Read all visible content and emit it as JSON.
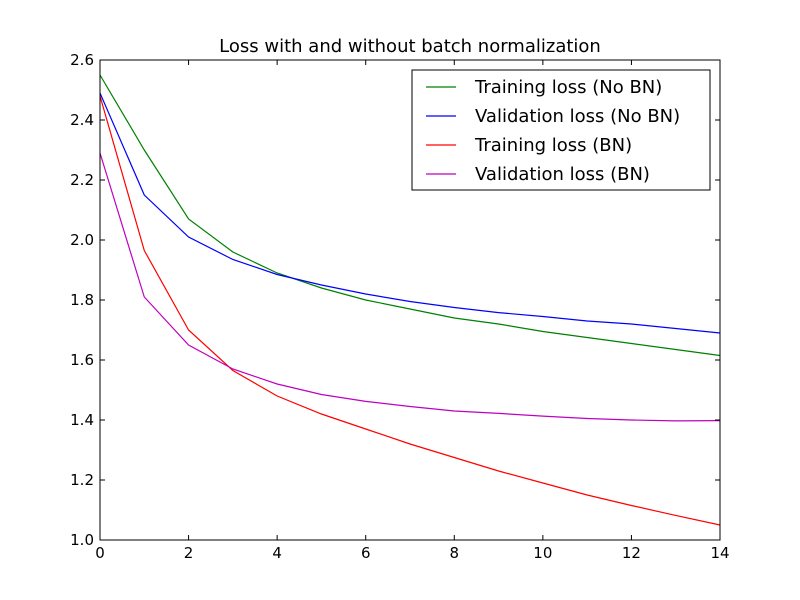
{
  "chart_data": {
    "type": "line",
    "title": "Loss with and without batch normalization",
    "xlabel": "",
    "ylabel": "",
    "xlim": [
      0,
      14
    ],
    "ylim": [
      1.0,
      2.6
    ],
    "xticks": [
      "0",
      "2",
      "4",
      "6",
      "8",
      "10",
      "12",
      "14"
    ],
    "yticks": [
      "1.0",
      "1.2",
      "1.4",
      "1.6",
      "1.8",
      "2.0",
      "2.2",
      "2.4",
      "2.6"
    ],
    "grid": false,
    "legend_position": "top-right",
    "x": [
      0,
      1,
      2,
      3,
      4,
      5,
      6,
      7,
      8,
      9,
      10,
      11,
      12,
      13,
      14
    ],
    "series": [
      {
        "name": "Training loss (No BN)",
        "color": "#008000",
        "values": [
          2.55,
          2.3,
          2.07,
          1.96,
          1.89,
          1.84,
          1.8,
          1.77,
          1.74,
          1.72,
          1.695,
          1.675,
          1.655,
          1.635,
          1.615
        ]
      },
      {
        "name": "Validation loss (No BN)",
        "color": "#0000ff",
        "values": [
          2.49,
          2.15,
          2.01,
          1.935,
          1.885,
          1.85,
          1.82,
          1.795,
          1.775,
          1.758,
          1.745,
          1.73,
          1.72,
          1.705,
          1.69
        ]
      },
      {
        "name": "Training loss (BN)",
        "color": "#ff0000",
        "values": [
          2.48,
          1.965,
          1.7,
          1.565,
          1.48,
          1.42,
          1.37,
          1.32,
          1.275,
          1.23,
          1.19,
          1.15,
          1.115,
          1.082,
          1.05
        ]
      },
      {
        "name": "Validation loss (BN)",
        "color": "#bf00bf",
        "values": [
          2.29,
          1.81,
          1.65,
          1.57,
          1.52,
          1.485,
          1.462,
          1.445,
          1.43,
          1.422,
          1.413,
          1.405,
          1.4,
          1.397,
          1.398
        ]
      }
    ]
  }
}
